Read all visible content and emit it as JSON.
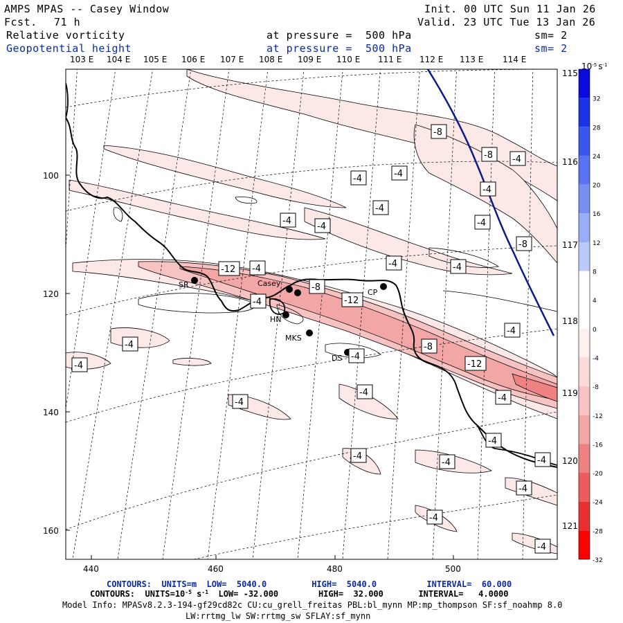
{
  "header": {
    "title": "AMPS MPAS -- Casey Window",
    "fcst_label": "Fcst.",
    "fcst_value": "71 h",
    "init": "Init. 00 UTC Sun 11 Jan 26",
    "valid": "Valid. 23 UTC Tue 13 Jan 26",
    "field1": "Relative vorticity",
    "field1_level": "at pressure =  500 hPa",
    "field1_sm": "sm= 2",
    "field2": "Geopotential height",
    "field2_level": "at pressure =  500 hPa",
    "field2_sm": "sm= 2"
  },
  "top_lon_labels": [
    "103 E",
    "104 E",
    "105 E",
    "106 E",
    "107 E",
    "108 E",
    "109 E",
    "110 E",
    "111 E",
    "112 E",
    "113 E",
    "114 E"
  ],
  "right_lon_labels": [
    "115 E",
    "116 E",
    "117 E",
    "118 E",
    "119 E",
    "120 E",
    "121 E"
  ],
  "y_ticks": [
    "100",
    "120",
    "140",
    "160"
  ],
  "x_ticks": [
    "440",
    "460",
    "480",
    "500"
  ],
  "stations": [
    {
      "name": "SR"
    },
    {
      "name": "Casey"
    },
    {
      "name": "CP"
    },
    {
      "name": "HN"
    },
    {
      "name": "MKS"
    },
    {
      "name": "DS"
    }
  ],
  "contour_labels": [
    "-8",
    "-8",
    "-4",
    "-4",
    "-4",
    "-4",
    "-4",
    "-4",
    "-4",
    "-4",
    "-4",
    "-8",
    "-12",
    "-4",
    "-4",
    "-4",
    "-8",
    "-12",
    "-4",
    "-4",
    "-8",
    "-12",
    "-4",
    "-4",
    "-4",
    "-4",
    "-4",
    "-4",
    "-4",
    "-4",
    "-4",
    "-4",
    "-4",
    "-4",
    "-4"
  ],
  "colorbar": {
    "units": "10",
    "units_exp": "-5",
    "units_suffix": "s",
    "units_suffix_exp": "-1",
    "ticks": [
      "32",
      "28",
      "24",
      "20",
      "16",
      "12",
      "8",
      "4",
      "0",
      "-4",
      "-8",
      "-12",
      "-16",
      "-20",
      "-24",
      "-28",
      "-32"
    ],
    "colors": [
      "#0a0adc",
      "#1e32e6",
      "#3c55ec",
      "#5a73f0",
      "#7890f2",
      "#9aaef6",
      "#bccaf8",
      "#ffffff",
      "#ffffff",
      "#fff0f0",
      "#fbdada",
      "#f7c2c2",
      "#f2a6a6",
      "#ee8282",
      "#ea5c5c",
      "#e83030",
      "#ff0000"
    ]
  },
  "footer": {
    "contour1": "CONTOURS:  UNITS=m  LOW=  5040.0         HIGH=  5040.0          INTERVAL=  60.000",
    "contour2_a": "CONTOURS:  UNITS=10",
    "contour2_exp1": "-5",
    "contour2_b": " s",
    "contour2_exp2": "-1",
    "contour2_c": "  LOW= -32.000        HIGH=  32.000       INTERVAL=   4.0000",
    "model_info": "Model Info: MPASv8.2.3-194-gf29cd82c CU:cu_grell_freitas PBL:bl_mynn MP:mp_thompson SF:sf_noahmp 8.0",
    "model_info2": "LW:rrtmg_lw SW:rrtmg_sw SFLAY:sf_mynn"
  }
}
